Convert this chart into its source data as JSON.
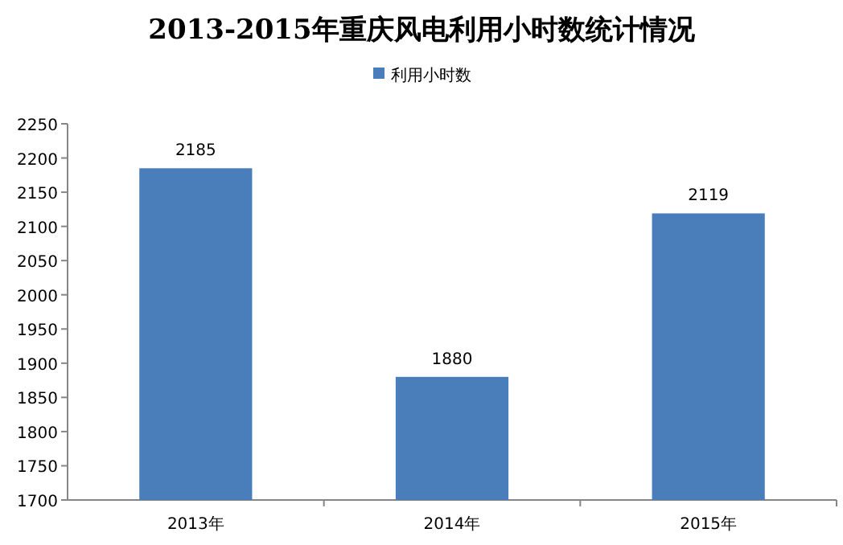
{
  "chart_data": {
    "type": "bar",
    "title": "2013-2015年重庆风电利用小时数统计情况",
    "categories": [
      "2013年",
      "2014年",
      "2015年"
    ],
    "series": [
      {
        "name": "利用小时数",
        "color": "#4a7ebb",
        "values": [
          2185,
          1880,
          2119
        ]
      }
    ],
    "ylim": [
      1700,
      2250
    ],
    "yticks": [
      1700,
      1750,
      1800,
      1850,
      1900,
      1950,
      2000,
      2050,
      2100,
      2150,
      2200,
      2250
    ],
    "data_labels": true,
    "legend": "top",
    "grid": false
  }
}
